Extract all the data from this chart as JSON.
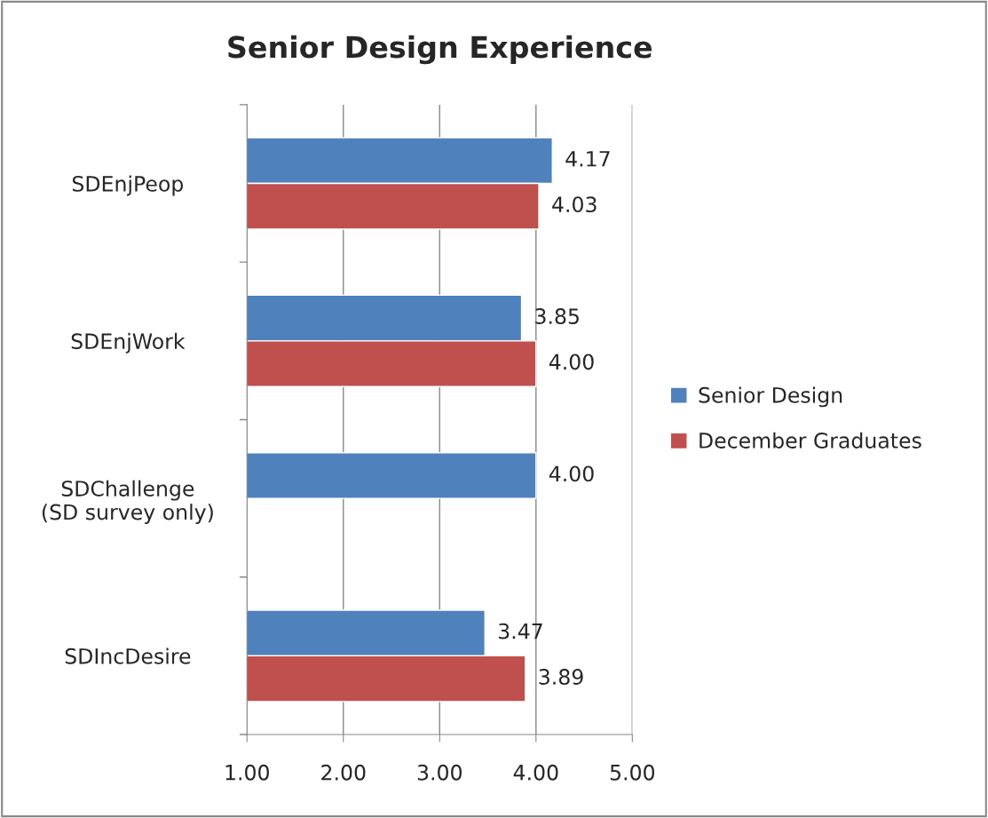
{
  "chart_data": {
    "type": "bar",
    "orientation": "horizontal",
    "title": "Senior Design Experience",
    "categories": [
      "SDEnjPeop",
      "SDEnjWork",
      "SDChallenge\n(SD survey only)",
      "SDIncDesire"
    ],
    "series": [
      {
        "name": "Senior Design",
        "color": "#4f81bd",
        "values": [
          4.17,
          3.85,
          4.0,
          3.47
        ],
        "value_labels": [
          "4.17",
          "3.85",
          "4.00",
          "3.47"
        ]
      },
      {
        "name": "December Graduates",
        "color": "#c0504d",
        "values": [
          4.03,
          4.0,
          null,
          3.89
        ],
        "value_labels": [
          "4.03",
          "4.00",
          null,
          "3.89"
        ]
      }
    ],
    "xlim": [
      1,
      5
    ],
    "xticks": [
      {
        "value": 1,
        "label": "1.00"
      },
      {
        "value": 2,
        "label": "2.00"
      },
      {
        "value": 3,
        "label": "3.00"
      },
      {
        "value": 4,
        "label": "4.00"
      },
      {
        "value": 5,
        "label": "5.00"
      }
    ],
    "grid": "x",
    "legend": "right"
  }
}
